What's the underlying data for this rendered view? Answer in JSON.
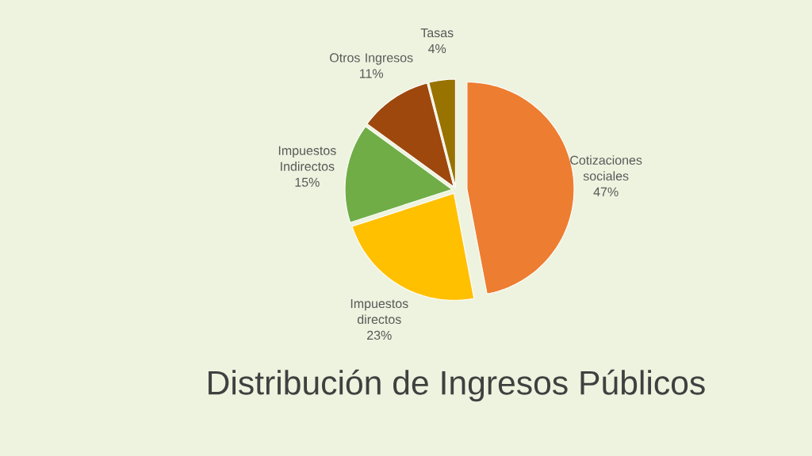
{
  "chart_data": {
    "type": "pie",
    "title": "Distribución de Ingresos Públicos",
    "categories": [
      "Cotizaciones sociales",
      "Impuestos directos",
      "Impuestos Indirectos",
      "Otros Ingresos",
      "Tasas"
    ],
    "values": [
      47,
      23,
      15,
      11,
      4
    ],
    "value_labels": [
      "47%",
      "23%",
      "15%",
      "11%",
      "4%"
    ],
    "colors": [
      "#ed7d31",
      "#ffc000",
      "#70ad47",
      "#9e480e",
      "#997300"
    ]
  }
}
